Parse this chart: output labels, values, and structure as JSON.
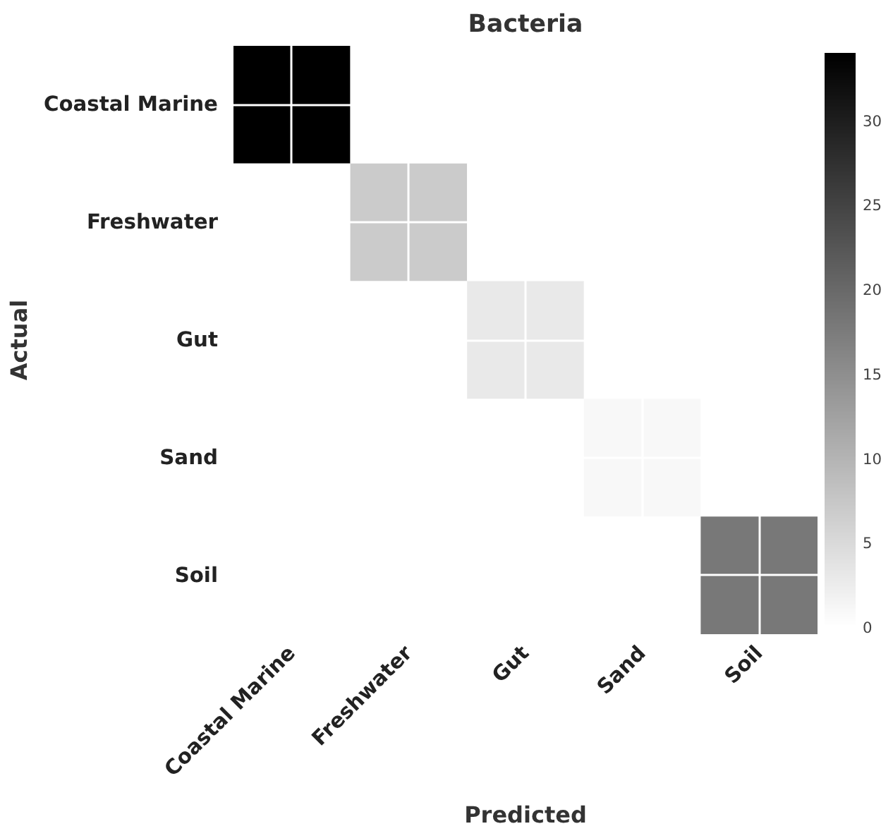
{
  "chart_data": {
    "type": "heatmap",
    "title": "Bacteria",
    "xlabel": "Predicted",
    "ylabel": "Actual",
    "categories": [
      "Coastal Marine",
      "Freshwater",
      "Gut",
      "Sand",
      "Soil"
    ],
    "y_categories": [
      "Coastal Marine",
      "Freshwater",
      "Gut",
      "Sand",
      "Soil"
    ],
    "cells": [
      [
        34,
        0,
        0,
        0,
        0
      ],
      [
        0,
        7,
        0,
        0,
        0
      ],
      [
        0,
        0,
        3,
        0,
        0
      ],
      [
        0,
        0,
        0,
        1,
        0
      ],
      [
        0,
        0,
        0,
        0,
        18
      ]
    ],
    "clim": [
      0,
      34
    ],
    "cticks": [
      0,
      5,
      10,
      15,
      20,
      25,
      30
    ],
    "grid": true
  }
}
